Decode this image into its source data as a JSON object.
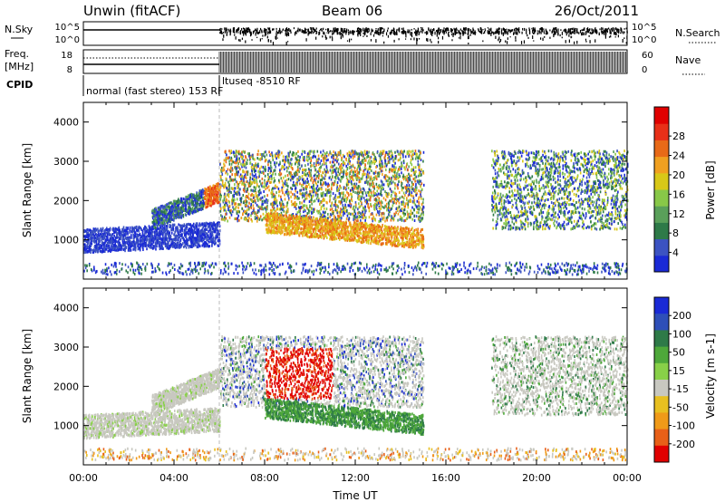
{
  "header": {
    "station": "Unwin (fitACF)",
    "beam": "Beam 06",
    "date": "26/Oct/2011"
  },
  "status_panel": {
    "nsky_label": "N.Sky",
    "nsky_ticks": [
      "10^5",
      "10^0"
    ],
    "nsearch_label": "N.Search",
    "nsearch_ticks": [
      "10^5",
      "10^0"
    ],
    "freq_label": "Freq.",
    "freq_unit": "[MHz]",
    "freq_ticks": [
      "18",
      "8"
    ],
    "nave_label": "Nave",
    "nave_ticks": [
      "60",
      "0"
    ],
    "cpid_label": "CPID",
    "cpid_segments": [
      {
        "text": "normal (fast stereo) 153 RF",
        "start_hour": 0,
        "end_hour": 6
      },
      {
        "text": "ltuseq -8510 RF",
        "start_hour": 6,
        "end_hour": 24
      }
    ]
  },
  "chart_data": [
    {
      "type": "heatmap",
      "name": "power",
      "xlabel": "",
      "ylabel": "Slant Range [km]",
      "xlim": [
        0,
        24
      ],
      "ylim": [
        0,
        4500
      ],
      "yticks": [
        1000,
        2000,
        3000,
        4000
      ],
      "colorbar": {
        "label": "Power [dB]",
        "ticks": [
          "4",
          "8",
          "12",
          "16",
          "20",
          "24",
          "28"
        ],
        "colors": [
          "#1a2ad6",
          "#3c53c2",
          "#2e7a48",
          "#5aa05a",
          "#88c848",
          "#d8c818",
          "#f0a020",
          "#e86a18",
          "#e83018",
          "#e00000"
        ]
      }
    },
    {
      "type": "heatmap",
      "name": "velocity",
      "xlabel": "Time UT",
      "ylabel": "Slant Range [km]",
      "xlim": [
        0,
        24
      ],
      "ylim": [
        0,
        4500
      ],
      "xticks": [
        "00:00",
        "04:00",
        "08:00",
        "12:00",
        "16:00",
        "20:00",
        "00:00"
      ],
      "yticks": [
        1000,
        2000,
        3000,
        4000
      ],
      "colorbar": {
        "label": "Velocity [m s-1]",
        "ticks": [
          "200",
          "100",
          "50",
          "15",
          "-15",
          "-50",
          "-100",
          "-200"
        ],
        "colors": [
          "#1a2ad6",
          "#2e4fb8",
          "#2e7a48",
          "#4ea83a",
          "#88d048",
          "#c8c8c0",
          "#e8c020",
          "#f09a18",
          "#e86018",
          "#e00000"
        ]
      }
    }
  ]
}
